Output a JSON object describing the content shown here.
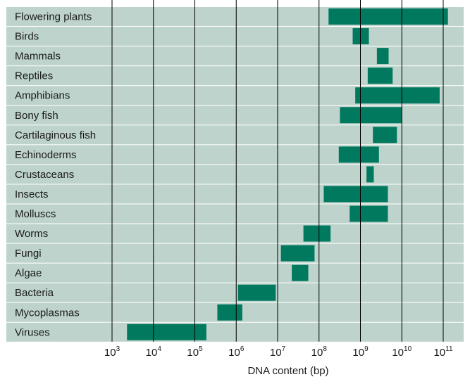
{
  "chart_data": {
    "type": "bar",
    "orientation": "horizontal-range",
    "xlabel": "DNA content (bp)",
    "x_scale": "log10",
    "xlim": [
      300,
      200000000000
    ],
    "tick_labels": [
      {
        "base": "10",
        "exp": "3"
      },
      {
        "base": "10",
        "exp": "4"
      },
      {
        "base": "10",
        "exp": "5"
      },
      {
        "base": "10",
        "exp": "6"
      },
      {
        "base": "10",
        "exp": "7"
      },
      {
        "base": "10",
        "exp": "8"
      },
      {
        "base": "10",
        "exp": "9"
      },
      {
        "base": "10",
        "exp": "10"
      },
      {
        "base": "10",
        "exp": "11"
      }
    ],
    "tick_values": [
      1000,
      10000,
      100000,
      1000000,
      10000000,
      100000000,
      1000000000,
      10000000000,
      100000000000
    ],
    "grid": true,
    "categories": [
      "Flowering plants",
      "Birds",
      "Mammals",
      "Reptiles",
      "Amphibians",
      "Bony fish",
      "Cartilaginous fish",
      "Echinoderms",
      "Crustaceans",
      "Insects",
      "Molluscs",
      "Worms",
      "Fungi",
      "Algae",
      "Bacteria",
      "Mycoplasmas",
      "Viruses"
    ],
    "ranges": [
      [
        170000000,
        130000000000
      ],
      [
        650000000,
        1600000000
      ],
      [
        2500000000,
        4800000000
      ],
      [
        1500000000,
        6000000000
      ],
      [
        750000000,
        82000000000
      ],
      [
        320000000,
        10000000000
      ],
      [
        2000000000,
        7600000000
      ],
      [
        300000000,
        2800000000
      ],
      [
        1400000000,
        2100000000
      ],
      [
        130000000,
        4600000000
      ],
      [
        550000000,
        4600000000
      ],
      [
        42000000,
        190000000
      ],
      [
        12000000,
        78000000
      ],
      [
        22000000,
        55000000
      ],
      [
        1100000,
        9000000
      ],
      [
        350000,
        1400000
      ],
      [
        2300,
        190000
      ]
    ],
    "colors": {
      "band": "#bdd3cb",
      "bar": "#00795f",
      "grid": "#000000"
    }
  }
}
